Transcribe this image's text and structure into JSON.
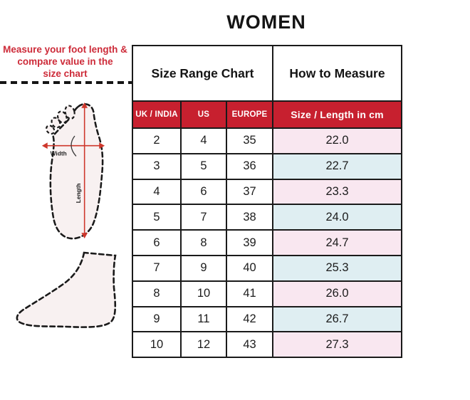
{
  "page": {
    "title": "WOMEN"
  },
  "instruction": {
    "line1": "Measure your foot length &",
    "line2": "compare value in the",
    "line3": "size chart"
  },
  "foot_diagram": {
    "width_label": "Width",
    "length_label": "Length"
  },
  "table": {
    "group_headers": {
      "size_range": "Size Range Chart",
      "how_to_measure": "How to Measure"
    },
    "columns": [
      "UK / INDIA",
      "US",
      "EUROPE",
      "Size / Length in cm"
    ],
    "rows": [
      [
        "2",
        "4",
        "35",
        "22.0"
      ],
      [
        "3",
        "5",
        "36",
        "22.7"
      ],
      [
        "4",
        "6",
        "37",
        "23.3"
      ],
      [
        "5",
        "7",
        "38",
        "24.0"
      ],
      [
        "6",
        "8",
        "39",
        "24.7"
      ],
      [
        "7",
        "9",
        "40",
        "25.3"
      ],
      [
        "8",
        "10",
        "41",
        "26.0"
      ],
      [
        "9",
        "11",
        "42",
        "26.7"
      ],
      [
        "10",
        "12",
        "43",
        "27.3"
      ]
    ]
  },
  "colors": {
    "header_red": "#C7202F",
    "row_pink": "#F9E7F0",
    "row_blue": "#DFEEF2",
    "accent_red_text": "#CD2B39",
    "arrow_red": "#CE372B"
  },
  "chart_data": {
    "type": "table",
    "title": "WOMEN",
    "group_headers": [
      "Size Range Chart",
      "How to Measure"
    ],
    "columns": [
      "UK / INDIA",
      "US",
      "EUROPE",
      "Size / Length in cm"
    ],
    "rows": [
      [
        "2",
        "4",
        "35",
        "22.0"
      ],
      [
        "3",
        "5",
        "36",
        "22.7"
      ],
      [
        "4",
        "6",
        "37",
        "23.3"
      ],
      [
        "5",
        "7",
        "38",
        "24.0"
      ],
      [
        "6",
        "8",
        "39",
        "24.7"
      ],
      [
        "7",
        "9",
        "40",
        "25.3"
      ],
      [
        "8",
        "10",
        "41",
        "26.0"
      ],
      [
        "9",
        "11",
        "42",
        "26.7"
      ],
      [
        "10",
        "12",
        "43",
        "27.3"
      ]
    ],
    "annotations": [
      "Measure your foot length & compare value in the size chart",
      "Width",
      "Length"
    ]
  }
}
